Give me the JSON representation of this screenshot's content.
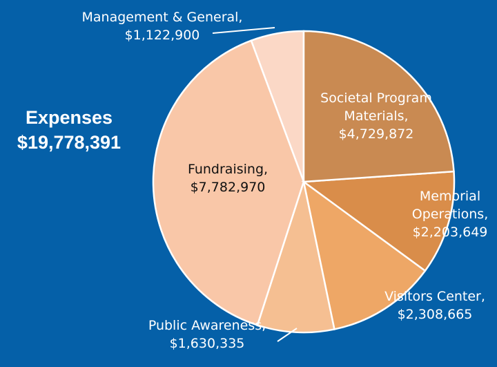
{
  "chart_data": {
    "type": "pie",
    "title": "Expenses",
    "subtitle": "$19,778,391",
    "categories": [
      "Societal Program Materials,",
      "Memorial Operations,",
      "Visitors Center,",
      "Public Awareness,",
      "Fundraising,",
      "Management & General,"
    ],
    "values": [
      4729872,
      2203649,
      2308665,
      1630335,
      7782970,
      1122900
    ],
    "value_labels": [
      "$4,729,872",
      "$2,203,649",
      "$2,308,665",
      "$1,630,335",
      "$7,782,970",
      "$1,122,900"
    ],
    "colors": [
      "#c98a52",
      "#d98d4a",
      "#eea766",
      "#f5bf92",
      "#f9c7a8",
      "#fbd8c6"
    ]
  }
}
